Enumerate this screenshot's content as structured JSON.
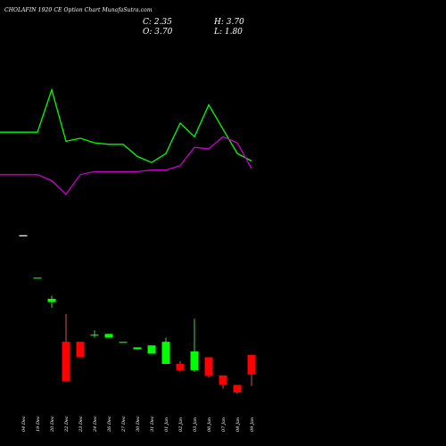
{
  "header": {
    "title": "CHOLAFIN 1920 CE Option Chart MunafaSutra.com",
    "close": "C: 2.35",
    "high": "H: 3.70",
    "open": "O: 3.70",
    "low": "L: 1.80"
  },
  "colors": {
    "background": "#000000",
    "up": "#00ff00",
    "down": "#ff0000",
    "line_upper": "#00ff00",
    "line_lower": "#cc00cc",
    "text": "#ffffff"
  },
  "chart_data": {
    "type": "candlestick",
    "title": "CHOLAFIN 1920 CE Option Chart MunafaSutra.com",
    "categories": [
      "04 Dec",
      "19 Dec",
      "20 Dec",
      "22 Dec",
      "23 Dec",
      "24 Dec",
      "26 Dec",
      "27 Dec",
      "30 Dec",
      "31 Dec",
      "01 Jan",
      "02 Jan",
      "03 Jan",
      "06 Jan",
      "07 Jan",
      "08 Jan",
      "09 Jan"
    ],
    "candles": [
      {
        "o": 58.5,
        "h": 58.5,
        "l": 58.5,
        "c": 58.5,
        "color": "flat"
      },
      {
        "o": 22.0,
        "h": 22.0,
        "l": 22.0,
        "c": 22.0,
        "color": "flat"
      },
      {
        "o": 13.5,
        "h": 14.5,
        "l": 11.0,
        "c": 12.5,
        "color": "green"
      },
      {
        "o": 5.0,
        "h": 9.5,
        "l": 2.0,
        "c": 2.0,
        "color": "red"
      },
      {
        "o": 5.0,
        "h": 5.0,
        "l": 3.5,
        "c": 3.5,
        "color": "red"
      },
      {
        "o": 5.9,
        "h": 6.5,
        "l": 5.5,
        "c": 5.9,
        "color": "green"
      },
      {
        "o": 5.5,
        "h": 6.0,
        "l": 5.5,
        "c": 6.0,
        "color": "green"
      },
      {
        "o": 5.0,
        "h": 5.0,
        "l": 5.0,
        "c": 5.0,
        "color": "flat"
      },
      {
        "o": 4.2,
        "h": 4.4,
        "l": 4.2,
        "c": 4.4,
        "color": "green"
      },
      {
        "o": 3.8,
        "h": 4.6,
        "l": 3.8,
        "c": 4.6,
        "color": "green"
      },
      {
        "o": 3.0,
        "h": 5.5,
        "l": 3.0,
        "c": 5.0,
        "color": "green"
      },
      {
        "o": 3.0,
        "h": 3.2,
        "l": 2.5,
        "c": 2.6,
        "color": "red"
      },
      {
        "o": 2.6,
        "h": 8.5,
        "l": 2.5,
        "c": 4.0,
        "color": "green"
      },
      {
        "o": 3.5,
        "h": 3.5,
        "l": 2.2,
        "c": 2.3,
        "color": "red"
      },
      {
        "o": 2.3,
        "h": 2.3,
        "l": 1.7,
        "c": 1.85,
        "color": "red"
      },
      {
        "o": 1.85,
        "h": 1.85,
        "l": 1.5,
        "c": 1.55,
        "color": "red"
      },
      {
        "o": 3.7,
        "h": 3.7,
        "l": 1.8,
        "c": 2.35,
        "color": "red"
      }
    ],
    "series": [
      {
        "values": [
          54,
          54,
          82,
          48,
          50,
          47,
          46,
          46,
          38,
          34,
          40,
          60,
          51,
          72,
          56,
          40,
          35
        ],
        "color": "#00ff00"
      },
      {
        "values": [
          26,
          26,
          22,
          13,
          26,
          28,
          28,
          28,
          28,
          29,
          29,
          32,
          44,
          43,
          51,
          47,
          30
        ],
        "color": "#cc00cc"
      }
    ]
  }
}
